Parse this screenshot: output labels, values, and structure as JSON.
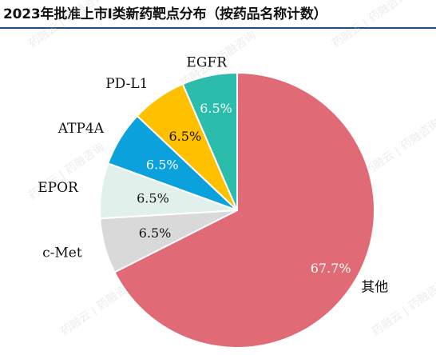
{
  "title": "2023年批准上市I类新药靶点分布（按药品名称计数）",
  "watermark": "药融云 | 药融咨询",
  "chart_data": {
    "type": "pie",
    "title": "2023年批准上市I类新药靶点分布（按药品名称计数）",
    "slices": [
      {
        "label": "其他",
        "value": 67.7,
        "value_label": "67.7%",
        "color": "#e06b77"
      },
      {
        "label": "c-Met",
        "value": 6.5,
        "value_label": "6.5%",
        "color": "#d9d9d9"
      },
      {
        "label": "EPOR",
        "value": 6.5,
        "value_label": "6.5%",
        "color": "#e2f0eb"
      },
      {
        "label": "ATP4A",
        "value": 6.5,
        "value_label": "6.5%",
        "color": "#0aa1dc"
      },
      {
        "label": "PD-L1",
        "value": 6.5,
        "value_label": "6.5%",
        "color": "#ffc000"
      },
      {
        "label": "EGFR",
        "value": 6.5,
        "value_label": "6.5%",
        "color": "#2bbcab"
      }
    ]
  }
}
